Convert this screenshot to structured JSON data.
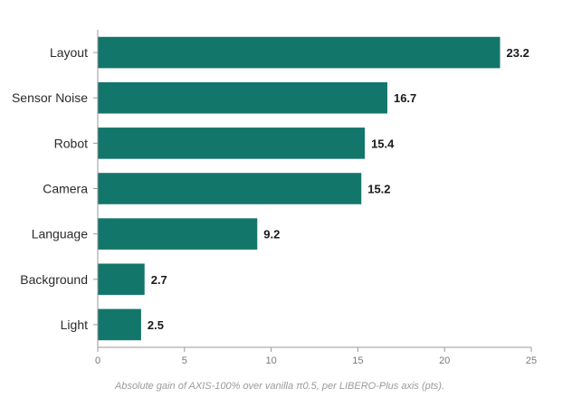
{
  "chart_data": {
    "type": "bar",
    "orientation": "horizontal",
    "categories": [
      "Layout",
      "Sensor Noise",
      "Robot",
      "Camera",
      "Language",
      "Background",
      "Light"
    ],
    "values": [
      23.2,
      16.7,
      15.4,
      15.2,
      9.2,
      2.7,
      2.5
    ],
    "value_labels": [
      "23.2",
      "16.7",
      "15.4",
      "15.2",
      "9.2",
      "2.7",
      "2.5"
    ],
    "xlim": [
      0,
      25
    ],
    "xticks": [
      0,
      5,
      10,
      15,
      20,
      25
    ],
    "xlabel": "",
    "ylabel": "",
    "grid": false,
    "legend": "none",
    "bar_color": "#13766b",
    "caption": "Absolute gain of AXIS-100% over vanilla π0.5, per LIBERO-Plus axis (pts)."
  }
}
